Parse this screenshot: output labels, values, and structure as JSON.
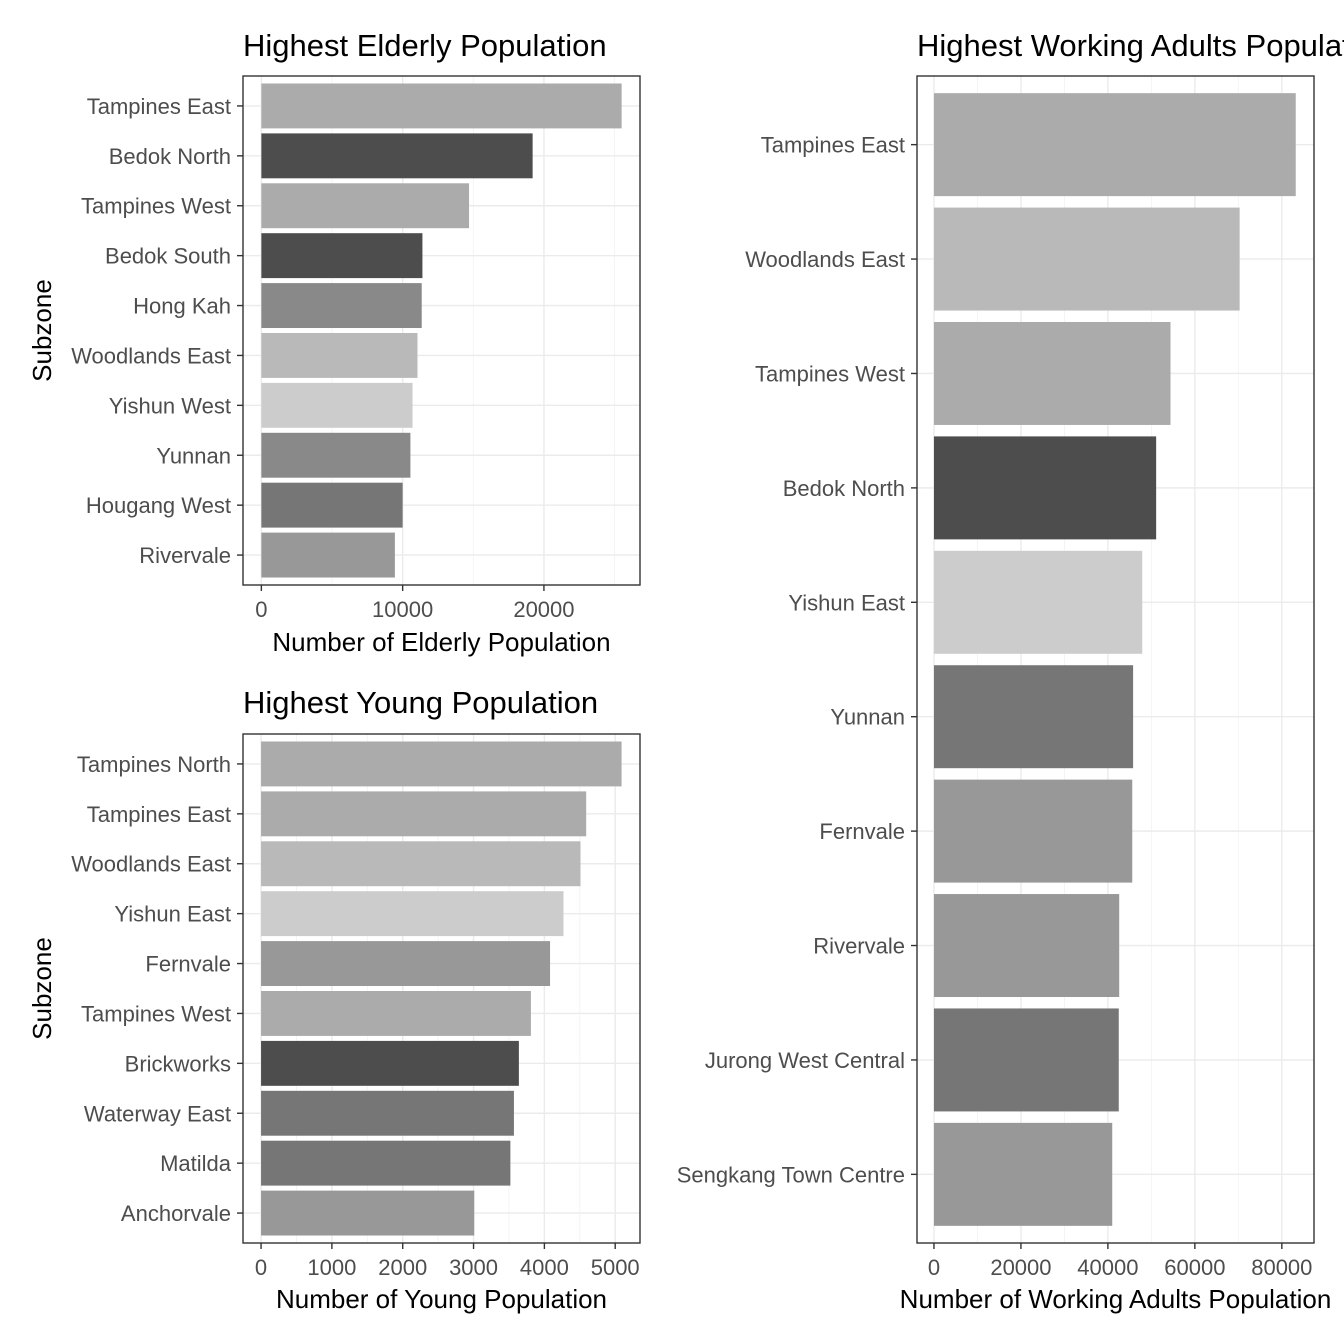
{
  "chart_data": [
    {
      "type": "bar",
      "orientation": "horizontal",
      "title": "Highest Elderly Population",
      "xlabel": "Number of Elderly Population",
      "ylabel": "Subzone",
      "xlim": [
        -1300,
        26800
      ],
      "xticks": [
        0,
        10000,
        20000
      ],
      "xtick_labels": [
        "0",
        "10000",
        "20000"
      ],
      "grid": true,
      "categories": [
        "Tampines East",
        "Bedok North",
        "Tampines West",
        "Bedok South",
        "Hong Kah",
        "Woodlands East",
        "Yishun West",
        "Yunnan",
        "Hougang West",
        "Rivervale"
      ],
      "values": [
        25500,
        19200,
        14700,
        11400,
        11350,
        11050,
        10700,
        10550,
        10000,
        9450
      ],
      "colors": [
        "#ababab",
        "#4d4d4d",
        "#ababab",
        "#4d4d4d",
        "#898989",
        "#b9b9b9",
        "#cccccc",
        "#898989",
        "#767676",
        "#989898"
      ]
    },
    {
      "type": "bar",
      "orientation": "horizontal",
      "title": "Highest Young Population",
      "xlabel": "Number of Young Population",
      "ylabel": "Subzone",
      "xlim": [
        -255,
        5350
      ],
      "xticks": [
        0,
        1000,
        2000,
        3000,
        4000,
        5000
      ],
      "xtick_labels": [
        "0",
        "1000",
        "2000",
        "3000",
        "4000",
        "5000"
      ],
      "grid": true,
      "categories": [
        "Tampines North",
        "Tampines East",
        "Woodlands East",
        "Yishun East",
        "Fernvale",
        "Tampines West",
        "Brickworks",
        "Waterway East",
        "Matilda",
        "Anchorvale"
      ],
      "values": [
        5090,
        4590,
        4510,
        4270,
        4080,
        3810,
        3640,
        3570,
        3520,
        3010
      ],
      "colors": [
        "#ababab",
        "#ababab",
        "#b9b9b9",
        "#cccccc",
        "#989898",
        "#ababab",
        "#4d4d4d",
        "#767676",
        "#767676",
        "#989898"
      ]
    },
    {
      "type": "bar",
      "orientation": "horizontal",
      "title": "Highest Working Adults Population",
      "xlabel": "Number of Working Adults Population",
      "ylabel": "",
      "xlim": [
        -3900,
        87400
      ],
      "xticks": [
        0,
        20000,
        40000,
        60000,
        80000
      ],
      "xtick_labels": [
        "0",
        "20000",
        "40000",
        "60000",
        "80000"
      ],
      "grid": true,
      "categories": [
        "Tampines East",
        "Woodlands East",
        "Tampines West",
        "Bedok North",
        "Yishun East",
        "Yunnan",
        "Fernvale",
        "Rivervale",
        "Jurong West Central",
        "Sengkang Town Centre"
      ],
      "values": [
        83200,
        70300,
        54400,
        51100,
        47900,
        45800,
        45600,
        42600,
        42500,
        41000
      ],
      "colors": [
        "#ababab",
        "#b9b9b9",
        "#ababab",
        "#4d4d4d",
        "#cccccc",
        "#767676",
        "#989898",
        "#989898",
        "#767676",
        "#989898"
      ]
    }
  ]
}
